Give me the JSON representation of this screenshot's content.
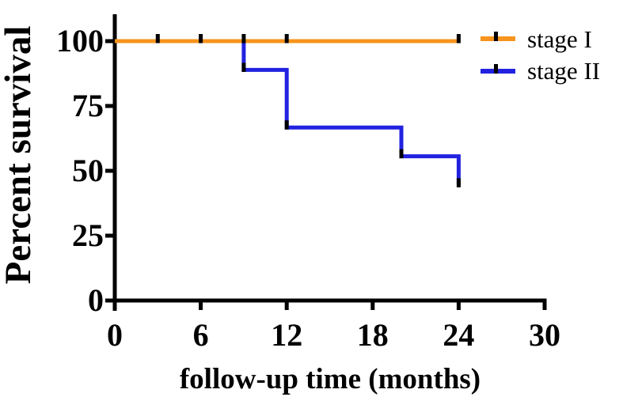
{
  "chart_data": {
    "type": "line",
    "subtype": "kaplan_meier_step_survival",
    "title": "",
    "xlabel": "follow-up time (months)",
    "ylabel": "Percent survival",
    "xlim": [
      0,
      30
    ],
    "ylim": [
      0,
      100
    ],
    "xticks": [
      0,
      6,
      12,
      18,
      24,
      30
    ],
    "yticks": [
      0,
      25,
      50,
      75,
      100
    ],
    "grid": false,
    "legend_position": "top-right",
    "axis_color": "#000000",
    "censor_mark_color": "#000000",
    "series": [
      {
        "name": "stage I",
        "color": "#F7941D",
        "points": [
          [
            0,
            100
          ],
          [
            24,
            100
          ]
        ],
        "censor_marks": [
          [
            3,
            100
          ],
          [
            6,
            100
          ],
          [
            9,
            100
          ],
          [
            12,
            100
          ],
          [
            24,
            100
          ]
        ]
      },
      {
        "name": "stage II",
        "color": "#2222E0",
        "points": [
          [
            0,
            100
          ],
          [
            9,
            100
          ],
          [
            9,
            88.9
          ],
          [
            12,
            88.9
          ],
          [
            12,
            66.7
          ],
          [
            20,
            66.7
          ],
          [
            20,
            55.6
          ],
          [
            24,
            55.6
          ],
          [
            24,
            44.4
          ]
        ],
        "censor_marks": [
          [
            9,
            88.9
          ],
          [
            12,
            66.7
          ],
          [
            20,
            55.6
          ],
          [
            24,
            44.4
          ]
        ]
      }
    ]
  }
}
